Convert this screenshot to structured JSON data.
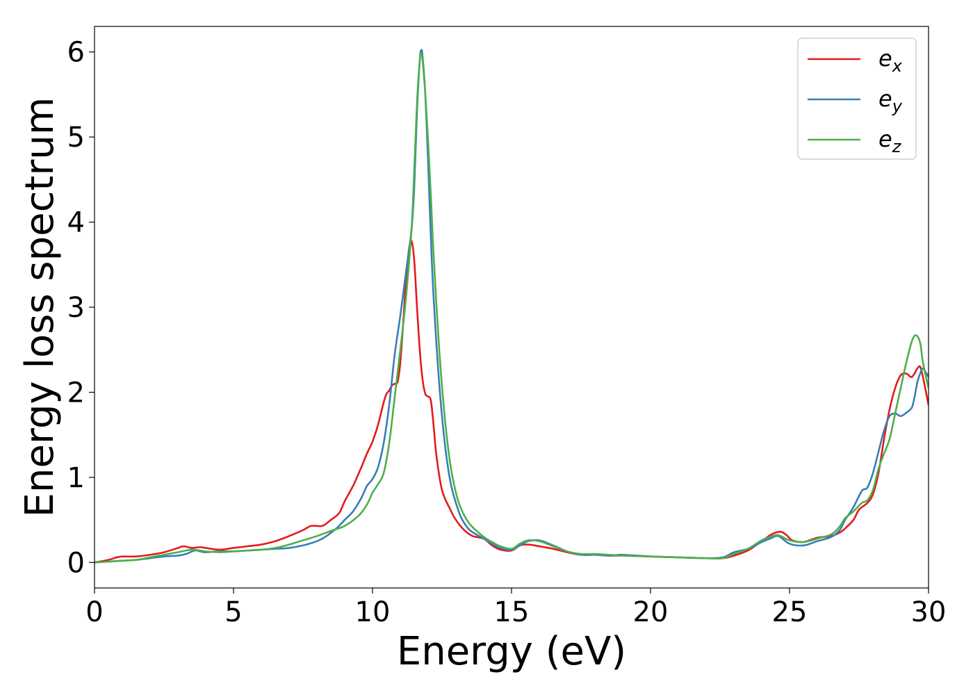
{
  "chart_data": {
    "type": "line",
    "xlabel": "Energy (eV)",
    "ylabel": "Energy loss spectrum",
    "xlim": [
      0,
      30
    ],
    "ylim": [
      -0.3,
      6.3
    ],
    "xticks": [
      0,
      5,
      10,
      15,
      20,
      25,
      30
    ],
    "yticks": [
      0,
      1,
      2,
      3,
      4,
      5,
      6
    ],
    "grid": false,
    "legend_position": "top-right",
    "series": [
      {
        "name": "e_x",
        "label_base": "e",
        "label_sub": "x",
        "color": "#e41a1c",
        "points": [
          [
            0,
            0
          ],
          [
            0.5,
            0.03
          ],
          [
            0.8,
            0.06
          ],
          [
            1.0,
            0.07
          ],
          [
            1.5,
            0.07
          ],
          [
            2.0,
            0.09
          ],
          [
            2.5,
            0.12
          ],
          [
            3.0,
            0.17
          ],
          [
            3.2,
            0.19
          ],
          [
            3.5,
            0.17
          ],
          [
            3.8,
            0.18
          ],
          [
            4.0,
            0.17
          ],
          [
            4.5,
            0.15
          ],
          [
            5.0,
            0.17
          ],
          [
            5.5,
            0.19
          ],
          [
            6.0,
            0.21
          ],
          [
            6.5,
            0.25
          ],
          [
            7.0,
            0.31
          ],
          [
            7.5,
            0.38
          ],
          [
            7.8,
            0.43
          ],
          [
            8.2,
            0.43
          ],
          [
            8.5,
            0.5
          ],
          [
            8.8,
            0.58
          ],
          [
            9.0,
            0.72
          ],
          [
            9.3,
            0.9
          ],
          [
            9.6,
            1.12
          ],
          [
            9.8,
            1.28
          ],
          [
            10.0,
            1.42
          ],
          [
            10.2,
            1.62
          ],
          [
            10.4,
            1.88
          ],
          [
            10.5,
            1.98
          ],
          [
            10.6,
            2.02
          ],
          [
            10.7,
            2.08
          ],
          [
            10.8,
            2.1
          ],
          [
            10.9,
            2.12
          ],
          [
            11.0,
            2.35
          ],
          [
            11.1,
            2.8
          ],
          [
            11.2,
            3.3
          ],
          [
            11.3,
            3.65
          ],
          [
            11.4,
            3.78
          ],
          [
            11.5,
            3.55
          ],
          [
            11.6,
            3.0
          ],
          [
            11.7,
            2.5
          ],
          [
            11.8,
            2.15
          ],
          [
            11.9,
            1.98
          ],
          [
            12.0,
            1.95
          ],
          [
            12.1,
            1.9
          ],
          [
            12.2,
            1.6
          ],
          [
            12.3,
            1.25
          ],
          [
            12.5,
            0.85
          ],
          [
            12.8,
            0.62
          ],
          [
            13.0,
            0.5
          ],
          [
            13.3,
            0.38
          ],
          [
            13.6,
            0.31
          ],
          [
            14.0,
            0.28
          ],
          [
            14.3,
            0.2
          ],
          [
            14.6,
            0.15
          ],
          [
            15.0,
            0.14
          ],
          [
            15.3,
            0.2
          ],
          [
            15.6,
            0.21
          ],
          [
            16.0,
            0.19
          ],
          [
            16.5,
            0.16
          ],
          [
            17.0,
            0.12
          ],
          [
            17.5,
            0.09
          ],
          [
            18.0,
            0.09
          ],
          [
            18.5,
            0.08
          ],
          [
            19.0,
            0.08
          ],
          [
            20.0,
            0.07
          ],
          [
            21.0,
            0.06
          ],
          [
            22.0,
            0.05
          ],
          [
            22.6,
            0.05
          ],
          [
            23.0,
            0.08
          ],
          [
            23.5,
            0.14
          ],
          [
            24.0,
            0.25
          ],
          [
            24.3,
            0.32
          ],
          [
            24.5,
            0.35
          ],
          [
            24.7,
            0.36
          ],
          [
            24.9,
            0.32
          ],
          [
            25.1,
            0.26
          ],
          [
            25.5,
            0.24
          ],
          [
            26.0,
            0.29
          ],
          [
            26.5,
            0.31
          ],
          [
            26.8,
            0.35
          ],
          [
            27.0,
            0.4
          ],
          [
            27.3,
            0.5
          ],
          [
            27.5,
            0.62
          ],
          [
            27.8,
            0.7
          ],
          [
            28.0,
            0.8
          ],
          [
            28.2,
            1.05
          ],
          [
            28.4,
            1.45
          ],
          [
            28.6,
            1.8
          ],
          [
            28.8,
            2.05
          ],
          [
            29.0,
            2.2
          ],
          [
            29.2,
            2.22
          ],
          [
            29.4,
            2.18
          ],
          [
            29.6,
            2.28
          ],
          [
            29.7,
            2.3
          ],
          [
            29.8,
            2.18
          ],
          [
            30.0,
            1.85
          ]
        ]
      },
      {
        "name": "e_y",
        "label_base": "e",
        "label_sub": "y",
        "color": "#377eb8",
        "points": [
          [
            0,
            0
          ],
          [
            0.5,
            0.01
          ],
          [
            1.0,
            0.02
          ],
          [
            1.5,
            0.03
          ],
          [
            2.0,
            0.05
          ],
          [
            2.5,
            0.07
          ],
          [
            3.0,
            0.08
          ],
          [
            3.3,
            0.1
          ],
          [
            3.6,
            0.14
          ],
          [
            3.8,
            0.13
          ],
          [
            4.0,
            0.12
          ],
          [
            4.5,
            0.13
          ],
          [
            5.0,
            0.13
          ],
          [
            5.5,
            0.14
          ],
          [
            6.0,
            0.15
          ],
          [
            6.5,
            0.16
          ],
          [
            7.0,
            0.17
          ],
          [
            7.5,
            0.2
          ],
          [
            8.0,
            0.25
          ],
          [
            8.3,
            0.3
          ],
          [
            8.7,
            0.4
          ],
          [
            9.0,
            0.5
          ],
          [
            9.3,
            0.6
          ],
          [
            9.6,
            0.76
          ],
          [
            9.8,
            0.9
          ],
          [
            10.0,
            0.98
          ],
          [
            10.2,
            1.12
          ],
          [
            10.4,
            1.4
          ],
          [
            10.6,
            1.85
          ],
          [
            10.8,
            2.45
          ],
          [
            11.0,
            2.9
          ],
          [
            11.2,
            3.4
          ],
          [
            11.4,
            3.9
          ],
          [
            11.5,
            4.4
          ],
          [
            11.6,
            5.3
          ],
          [
            11.7,
            5.9
          ],
          [
            11.75,
            6.02
          ],
          [
            11.8,
            5.95
          ],
          [
            11.9,
            5.5
          ],
          [
            12.0,
            4.7
          ],
          [
            12.1,
            3.8
          ],
          [
            12.2,
            3.1
          ],
          [
            12.4,
            2.1
          ],
          [
            12.6,
            1.4
          ],
          [
            12.8,
            0.95
          ],
          [
            13.0,
            0.7
          ],
          [
            13.2,
            0.52
          ],
          [
            13.5,
            0.38
          ],
          [
            14.0,
            0.28
          ],
          [
            14.3,
            0.22
          ],
          [
            14.6,
            0.17
          ],
          [
            15.0,
            0.15
          ],
          [
            15.3,
            0.2
          ],
          [
            15.6,
            0.25
          ],
          [
            16.0,
            0.26
          ],
          [
            16.5,
            0.2
          ],
          [
            17.0,
            0.13
          ],
          [
            17.5,
            0.09
          ],
          [
            18.0,
            0.09
          ],
          [
            18.5,
            0.08
          ],
          [
            19.0,
            0.09
          ],
          [
            20.0,
            0.07
          ],
          [
            21.0,
            0.06
          ],
          [
            22.0,
            0.05
          ],
          [
            22.6,
            0.06
          ],
          [
            23.0,
            0.12
          ],
          [
            23.5,
            0.16
          ],
          [
            24.0,
            0.24
          ],
          [
            24.3,
            0.28
          ],
          [
            24.6,
            0.31
          ],
          [
            25.0,
            0.22
          ],
          [
            25.5,
            0.2
          ],
          [
            26.0,
            0.25
          ],
          [
            26.5,
            0.3
          ],
          [
            26.8,
            0.38
          ],
          [
            27.0,
            0.5
          ],
          [
            27.3,
            0.65
          ],
          [
            27.6,
            0.84
          ],
          [
            27.8,
            0.88
          ],
          [
            28.0,
            1.05
          ],
          [
            28.2,
            1.3
          ],
          [
            28.4,
            1.55
          ],
          [
            28.6,
            1.72
          ],
          [
            28.8,
            1.75
          ],
          [
            29.0,
            1.72
          ],
          [
            29.2,
            1.76
          ],
          [
            29.4,
            1.82
          ],
          [
            29.5,
            1.95
          ],
          [
            29.6,
            2.12
          ],
          [
            29.7,
            2.22
          ],
          [
            29.8,
            2.28
          ],
          [
            30.0,
            2.18
          ]
        ]
      },
      {
        "name": "e_z",
        "label_base": "e",
        "label_sub": "z",
        "color": "#4daf4a",
        "points": [
          [
            0,
            0
          ],
          [
            0.5,
            0.01
          ],
          [
            1.0,
            0.02
          ],
          [
            1.5,
            0.03
          ],
          [
            2.0,
            0.06
          ],
          [
            2.5,
            0.09
          ],
          [
            3.0,
            0.12
          ],
          [
            3.5,
            0.15
          ],
          [
            4.0,
            0.13
          ],
          [
            4.5,
            0.12
          ],
          [
            5.0,
            0.13
          ],
          [
            5.5,
            0.14
          ],
          [
            6.0,
            0.15
          ],
          [
            6.5,
            0.17
          ],
          [
            7.0,
            0.21
          ],
          [
            7.5,
            0.26
          ],
          [
            8.0,
            0.31
          ],
          [
            8.5,
            0.37
          ],
          [
            9.0,
            0.43
          ],
          [
            9.5,
            0.55
          ],
          [
            9.8,
            0.68
          ],
          [
            10.0,
            0.82
          ],
          [
            10.2,
            0.92
          ],
          [
            10.4,
            1.05
          ],
          [
            10.6,
            1.4
          ],
          [
            10.8,
            1.95
          ],
          [
            11.0,
            2.5
          ],
          [
            11.2,
            3.1
          ],
          [
            11.4,
            3.9
          ],
          [
            11.5,
            4.6
          ],
          [
            11.6,
            5.4
          ],
          [
            11.7,
            5.9
          ],
          [
            11.75,
            5.98
          ],
          [
            11.8,
            5.9
          ],
          [
            11.9,
            5.5
          ],
          [
            12.0,
            4.95
          ],
          [
            12.1,
            4.3
          ],
          [
            12.2,
            3.6
          ],
          [
            12.4,
            2.5
          ],
          [
            12.6,
            1.7
          ],
          [
            12.8,
            1.15
          ],
          [
            13.0,
            0.82
          ],
          [
            13.2,
            0.62
          ],
          [
            13.5,
            0.45
          ],
          [
            14.0,
            0.3
          ],
          [
            14.3,
            0.24
          ],
          [
            14.6,
            0.19
          ],
          [
            15.0,
            0.16
          ],
          [
            15.3,
            0.22
          ],
          [
            15.6,
            0.26
          ],
          [
            16.0,
            0.25
          ],
          [
            16.5,
            0.19
          ],
          [
            17.0,
            0.13
          ],
          [
            17.5,
            0.1
          ],
          [
            18.0,
            0.1
          ],
          [
            18.5,
            0.09
          ],
          [
            19.0,
            0.08
          ],
          [
            20.0,
            0.07
          ],
          [
            21.0,
            0.06
          ],
          [
            22.0,
            0.05
          ],
          [
            22.6,
            0.05
          ],
          [
            23.0,
            0.1
          ],
          [
            23.5,
            0.16
          ],
          [
            24.0,
            0.26
          ],
          [
            24.3,
            0.3
          ],
          [
            24.6,
            0.32
          ],
          [
            25.0,
            0.26
          ],
          [
            25.5,
            0.24
          ],
          [
            26.0,
            0.28
          ],
          [
            26.5,
            0.33
          ],
          [
            26.8,
            0.42
          ],
          [
            27.0,
            0.52
          ],
          [
            27.3,
            0.6
          ],
          [
            27.6,
            0.7
          ],
          [
            27.8,
            0.73
          ],
          [
            28.0,
            0.85
          ],
          [
            28.2,
            1.1
          ],
          [
            28.4,
            1.28
          ],
          [
            28.6,
            1.45
          ],
          [
            28.8,
            1.75
          ],
          [
            29.0,
            2.05
          ],
          [
            29.2,
            2.35
          ],
          [
            29.4,
            2.6
          ],
          [
            29.55,
            2.67
          ],
          [
            29.7,
            2.58
          ],
          [
            29.8,
            2.35
          ],
          [
            30.0,
            2.05
          ]
        ]
      }
    ]
  }
}
